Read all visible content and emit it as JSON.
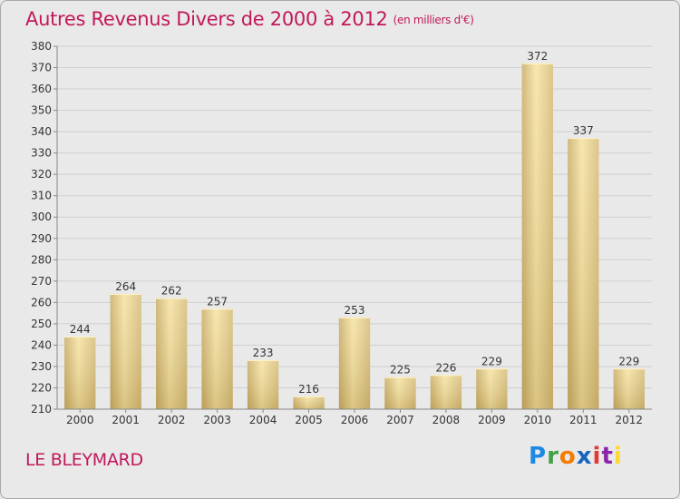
{
  "header": {
    "title": "Autres Revenus Divers de 2000 à 2012",
    "unit": "(en milliers d'€)"
  },
  "footer": {
    "city": "LE BLEYMARD",
    "logo": "Proxiti"
  },
  "colors": {
    "title": "#c2185b",
    "bar_light": "#f7e3a2",
    "bar_dark": "#c6a95e",
    "grid": "#cccccc"
  },
  "chart_data": {
    "type": "bar",
    "title": "Autres Revenus Divers de 2000 à 2012",
    "xlabel": "",
    "ylabel": "",
    "categories": [
      "2000",
      "2001",
      "2002",
      "2003",
      "2004",
      "2005",
      "2006",
      "2007",
      "2008",
      "2009",
      "2010",
      "2011",
      "2012"
    ],
    "values": [
      244,
      264,
      262,
      257,
      233,
      216,
      253,
      225,
      226,
      229,
      372,
      337,
      229
    ],
    "ylim": [
      210,
      380
    ],
    "yticks": [
      210,
      220,
      230,
      240,
      250,
      260,
      270,
      280,
      290,
      300,
      310,
      320,
      330,
      340,
      350,
      360,
      370,
      380
    ],
    "grid": true,
    "data_labels": true
  }
}
